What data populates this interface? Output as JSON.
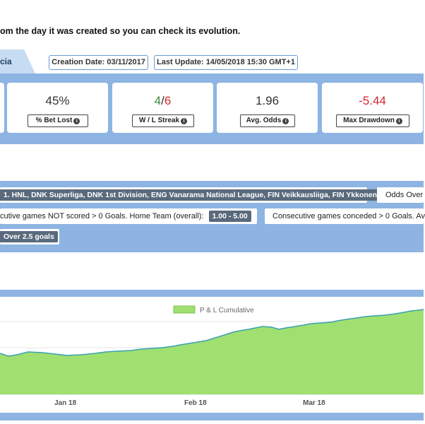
{
  "intro_text": "om the day it was created so you can check its evolution.",
  "tab_label": "cia",
  "dates": {
    "creation": "Creation Date: 03/11/2017",
    "last_update": "Last Update: 14/05/2018 15:30 GMT+1"
  },
  "stats": [
    {
      "value": "45%",
      "label": "% Bet Lost"
    },
    {
      "value_win": "4",
      "value_sep": "/",
      "value_loss": "6",
      "label": "W / L Streak"
    },
    {
      "value": "1.96",
      "label": "Avg. Odds"
    },
    {
      "value": "-5.44",
      "label": "Max Drawdown"
    }
  ],
  "colors": {
    "win": "#3a8a3a",
    "loss": "#d0282e",
    "band": "#8db4e2",
    "area_fill": "#a0e070",
    "area_line": "#3aa0b0"
  },
  "filters": {
    "leagues": "1. HNL, DNK Superliga, DNK 1st Division, ENG Vanarama National League, FIN Veikkausliiga, FIN Ykkonen ...",
    "odds": "Odds Over",
    "rule1_text": "cutive games NOT scored > 0 Goals. Home Team (overall):",
    "rule1_range": "1.00 - 5.00",
    "rule2_text": "Consecutive games conceded > 0 Goals. Av",
    "market": "Over 2.5 goals"
  },
  "chart_data": {
    "type": "area",
    "series": [
      {
        "name": "P & L Cumulative"
      }
    ],
    "x_ticks": [
      "Jan 18",
      "Feb 18",
      "Mar 18"
    ],
    "legend_position": "top",
    "grid": "horizontal"
  }
}
